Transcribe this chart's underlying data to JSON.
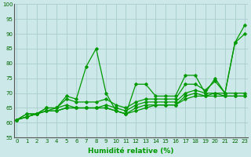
{
  "title": "",
  "xlabel": "Humidité relative (%)",
  "ylabel": "",
  "background_color": "#cce8e8",
  "grid_color": "#aacccc",
  "line_color": "#009900",
  "xlim": [
    0,
    23
  ],
  "ylim": [
    55,
    100
  ],
  "yticks": [
    55,
    60,
    65,
    70,
    75,
    80,
    85,
    90,
    95,
    100
  ],
  "xticks": [
    0,
    1,
    2,
    3,
    4,
    5,
    6,
    7,
    8,
    9,
    10,
    11,
    12,
    13,
    14,
    15,
    16,
    17,
    18,
    19,
    20,
    21,
    22,
    23
  ],
  "xlabel_fontsize": 6.5,
  "tick_fontsize": 5.0,
  "lines": [
    [
      61,
      63,
      63,
      65,
      65,
      69,
      68,
      79,
      85,
      70,
      64,
      63,
      73,
      73,
      69,
      69,
      69,
      76,
      76,
      70,
      75,
      70,
      87,
      93
    ],
    [
      61,
      63,
      63,
      65,
      65,
      68,
      67,
      67,
      67,
      68,
      66,
      65,
      67,
      68,
      68,
      68,
      68,
      73,
      73,
      71,
      74,
      70,
      87,
      90
    ],
    [
      61,
      62,
      63,
      64,
      65,
      66,
      65,
      65,
      65,
      66,
      65,
      64,
      66,
      67,
      67,
      67,
      67,
      70,
      71,
      70,
      70,
      70,
      70,
      70
    ],
    [
      61,
      62,
      63,
      64,
      64,
      65,
      65,
      65,
      65,
      65,
      64,
      63,
      65,
      66,
      66,
      66,
      66,
      69,
      70,
      69,
      70,
      69,
      69,
      69
    ],
    [
      61,
      62,
      63,
      64,
      64,
      65,
      65,
      65,
      65,
      65,
      64,
      63,
      64,
      65,
      66,
      66,
      66,
      68,
      69,
      69,
      69,
      69,
      69,
      69
    ]
  ]
}
